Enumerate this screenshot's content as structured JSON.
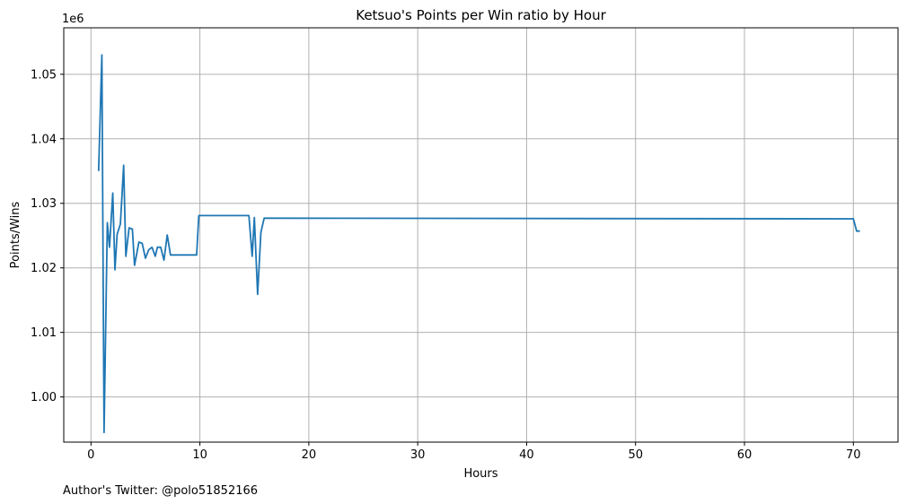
{
  "chart_data": {
    "type": "line",
    "title": "Ketsuo's Points per Win ratio by Hour",
    "xlabel": "Hours",
    "ylabel": "Points/Wins",
    "y_offset_label": "1e6",
    "xlim": [
      -2.5,
      74.1
    ],
    "ylim": [
      0.993,
      1.0572
    ],
    "x_ticks": [
      0,
      10,
      20,
      30,
      40,
      50,
      60,
      70
    ],
    "x_tick_labels": [
      "0",
      "10",
      "20",
      "30",
      "40",
      "50",
      "60",
      "70"
    ],
    "y_ticks": [
      1.0,
      1.01,
      1.02,
      1.03,
      1.04,
      1.05
    ],
    "y_tick_labels": [
      "1.00",
      "1.01",
      "1.02",
      "1.03",
      "1.04",
      "1.05"
    ],
    "grid": true,
    "line_color": "#1f77b4",
    "series": [
      {
        "x": [
          0.7,
          1.0,
          1.2,
          1.5,
          1.7,
          2.0,
          2.2,
          2.4,
          2.7,
          3.0,
          3.2,
          3.5,
          3.8,
          4.0,
          4.4,
          4.7,
          5.0,
          5.3,
          5.6,
          5.9,
          6.1,
          6.4,
          6.7,
          7.0,
          7.3,
          9.7,
          9.9,
          14.5,
          14.8,
          15.0,
          15.3,
          15.6,
          15.9,
          70.0,
          70.3,
          70.6
        ],
        "y": [
          1.035,
          1.053,
          0.9945,
          1.027,
          1.0232,
          1.0316,
          1.0197,
          1.0252,
          1.0268,
          1.0359,
          1.0218,
          1.0262,
          1.026,
          1.0204,
          1.024,
          1.0238,
          1.0215,
          1.0228,
          1.0232,
          1.0218,
          1.0232,
          1.0232,
          1.0212,
          1.0251,
          1.022,
          1.022,
          1.0281,
          1.0281,
          1.0218,
          1.0278,
          1.0159,
          1.0255,
          1.0277,
          1.0276,
          1.0257,
          1.0257
        ]
      }
    ]
  },
  "footer": {
    "author_text": "Author's Twitter: @polo51852166"
  }
}
